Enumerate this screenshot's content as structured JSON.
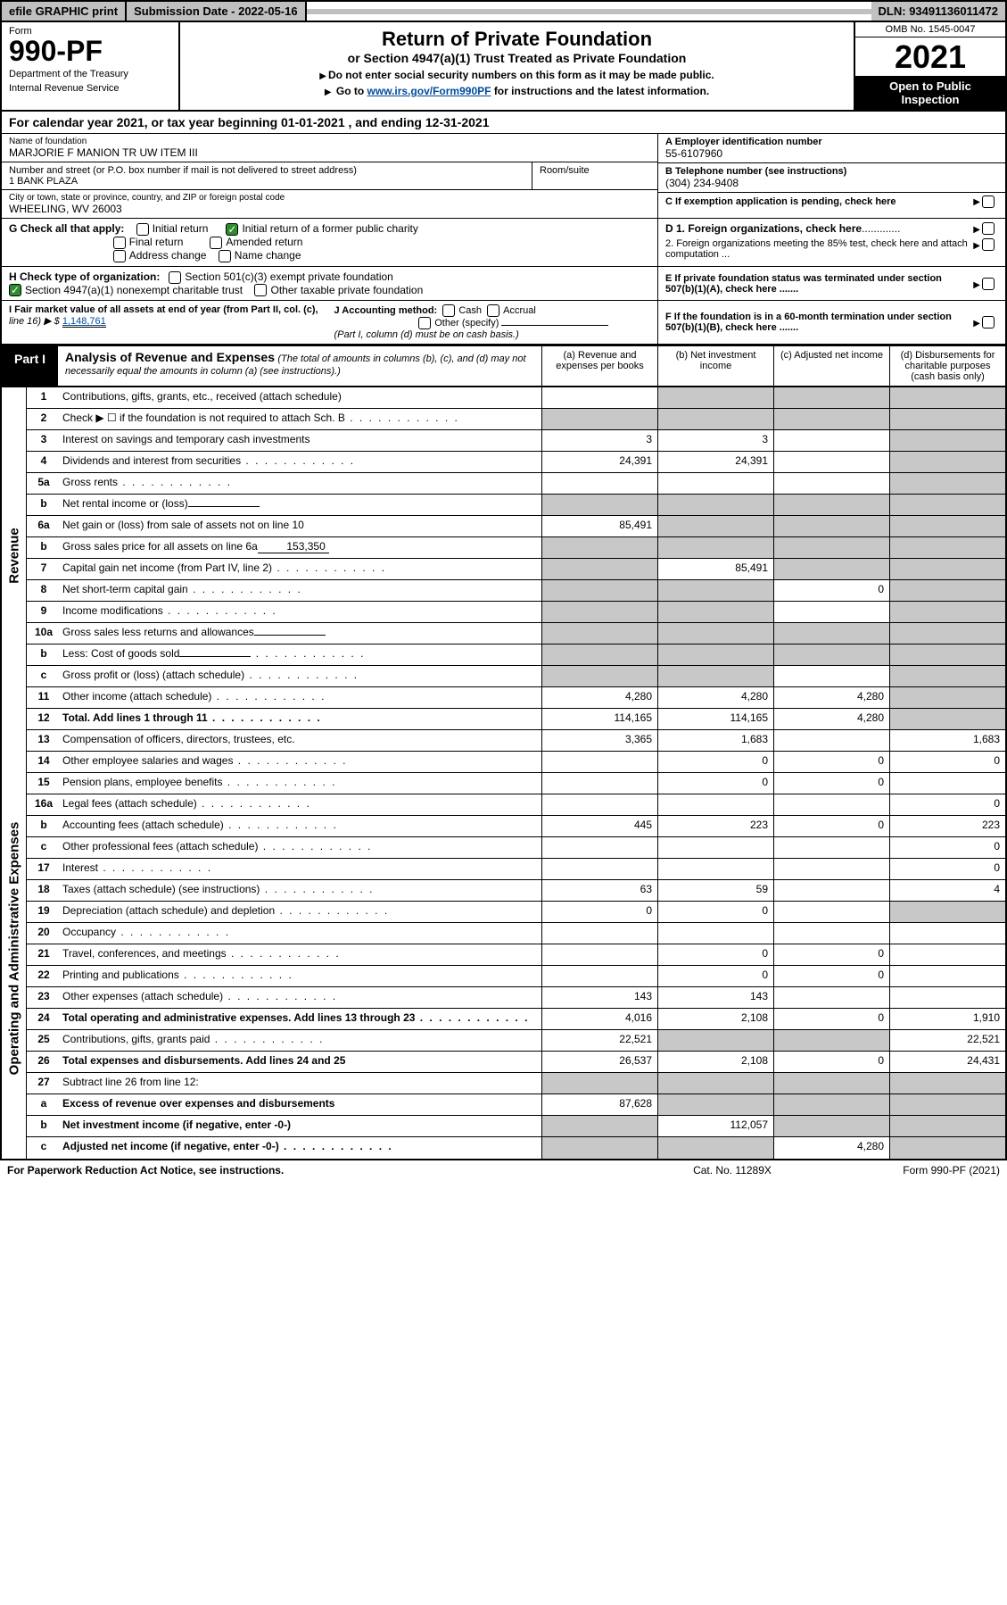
{
  "colors": {
    "black": "#000000",
    "gray_header": "#c0c0c0",
    "gray_cell": "#c8c8c8",
    "link": "#004b9b",
    "check_green": "#2e8b2e"
  },
  "topbar": {
    "efile": "efile GRAPHIC print",
    "subdate": "Submission Date - 2022-05-16",
    "dln": "DLN: 93491136011472"
  },
  "header": {
    "form": "Form",
    "formno": "990-PF",
    "dept": "Department of the Treasury",
    "irs": "Internal Revenue Service",
    "title": "Return of Private Foundation",
    "subtitle": "or Section 4947(a)(1) Trust Treated as Private Foundation",
    "instr1": "Do not enter social security numbers on this form as it may be made public.",
    "instr2_pre": "Go to ",
    "instr2_link": "www.irs.gov/Form990PF",
    "instr2_post": " for instructions and the latest information.",
    "omb": "OMB No. 1545-0047",
    "year": "2021",
    "open": "Open to Public Inspection"
  },
  "calyear": {
    "pre": "For calendar year 2021, or tax year beginning ",
    "begin": "01-01-2021",
    "mid": " , and ending ",
    "end": "12-31-2021"
  },
  "info": {
    "name_label": "Name of foundation",
    "name": "MARJORIE F MANION TR UW ITEM III",
    "addr_label": "Number and street (or P.O. box number if mail is not delivered to street address)",
    "addr": "1 BANK PLAZA",
    "room_label": "Room/suite",
    "room": "",
    "city_label": "City or town, state or province, country, and ZIP or foreign postal code",
    "city": "WHEELING, WV  26003",
    "a_label": "A Employer identification number",
    "a_val": "55-6107960",
    "b_label": "B Telephone number (see instructions)",
    "b_val": "(304) 234-9408",
    "c_label": "C If exemption application is pending, check here"
  },
  "g": {
    "label": "G Check all that apply:",
    "initial": "Initial return",
    "initial_former": "Initial return of a former public charity",
    "final": "Final return",
    "amended": "Amended return",
    "addr_change": "Address change",
    "name_change": "Name change"
  },
  "d": {
    "d1": "D 1. Foreign organizations, check here",
    "d2": "2. Foreign organizations meeting the 85% test, check here and attach computation ..."
  },
  "h": {
    "label": "H Check type of organization:",
    "s501": "Section 501(c)(3) exempt private foundation",
    "s4947": "Section 4947(a)(1) nonexempt charitable trust",
    "other_tax": "Other taxable private foundation"
  },
  "e": "E  If private foundation status was terminated under section 507(b)(1)(A), check here .......",
  "i": {
    "label": "I Fair market value of all assets at end of year (from Part II, col. (c),",
    "line16": "line 16) ▶ $",
    "val": "1,148,761"
  },
  "j": {
    "label": "J Accounting method:",
    "cash": "Cash",
    "accrual": "Accrual",
    "other": "Other (specify)",
    "note": "(Part I, column (d) must be on cash basis.)"
  },
  "f": "F  If the foundation is in a 60-month termination under section 507(b)(1)(B), check here .......",
  "part1": {
    "label": "Part I",
    "title": "Analysis of Revenue and Expenses",
    "note": "(The total of amounts in columns (b), (c), and (d) may not necessarily equal the amounts in column (a) (see instructions).)",
    "col_a": "(a)  Revenue and expenses per books",
    "col_b": "(b)  Net investment income",
    "col_c": "(c)  Adjusted net income",
    "col_d": "(d)  Disbursements for charitable purposes (cash basis only)"
  },
  "side": {
    "revenue": "Revenue",
    "expenses": "Operating and Administrative Expenses"
  },
  "rows": [
    {
      "n": "1",
      "d": "Contributions, gifts, grants, etc., received (attach schedule)",
      "a": "",
      "b": "gray",
      "c": "gray",
      "dd": "gray"
    },
    {
      "n": "2",
      "d": "Check ▶ ☐ if the foundation is not required to attach Sch. B",
      "a": "gray",
      "b": "gray",
      "c": "gray",
      "dd": "gray",
      "dots": true
    },
    {
      "n": "3",
      "d": "Interest on savings and temporary cash investments",
      "a": "3",
      "b": "3",
      "c": "",
      "dd": "gray"
    },
    {
      "n": "4",
      "d": "Dividends and interest from securities",
      "a": "24,391",
      "b": "24,391",
      "c": "",
      "dd": "gray",
      "dots": true
    },
    {
      "n": "5a",
      "d": "Gross rents",
      "a": "",
      "b": "",
      "c": "",
      "dd": "gray",
      "dots": true
    },
    {
      "n": "b",
      "d": "Net rental income or (loss)",
      "a": "gray",
      "b": "gray",
      "c": "gray",
      "dd": "gray",
      "inline": ""
    },
    {
      "n": "6a",
      "d": "Net gain or (loss) from sale of assets not on line 10",
      "a": "85,491",
      "b": "gray",
      "c": "gray",
      "dd": "gray"
    },
    {
      "n": "b",
      "d": "Gross sales price for all assets on line 6a",
      "a": "gray",
      "b": "gray",
      "c": "gray",
      "dd": "gray",
      "inline": "153,350"
    },
    {
      "n": "7",
      "d": "Capital gain net income (from Part IV, line 2)",
      "a": "gray",
      "b": "85,491",
      "c": "gray",
      "dd": "gray",
      "dots": true
    },
    {
      "n": "8",
      "d": "Net short-term capital gain",
      "a": "gray",
      "b": "gray",
      "c": "0",
      "dd": "gray",
      "dots": true
    },
    {
      "n": "9",
      "d": "Income modifications",
      "a": "gray",
      "b": "gray",
      "c": "",
      "dd": "gray",
      "dots": true
    },
    {
      "n": "10a",
      "d": "Gross sales less returns and allowances",
      "a": "gray",
      "b": "gray",
      "c": "gray",
      "dd": "gray",
      "inline": ""
    },
    {
      "n": "b",
      "d": "Less: Cost of goods sold",
      "a": "gray",
      "b": "gray",
      "c": "gray",
      "dd": "gray",
      "inline": "",
      "dots": true
    },
    {
      "n": "c",
      "d": "Gross profit or (loss) (attach schedule)",
      "a": "gray",
      "b": "gray",
      "c": "",
      "dd": "gray",
      "dots": true
    },
    {
      "n": "11",
      "d": "Other income (attach schedule)",
      "a": "4,280",
      "b": "4,280",
      "c": "4,280",
      "dd": "gray",
      "dots": true
    },
    {
      "n": "12",
      "d": "Total. Add lines 1 through 11",
      "a": "114,165",
      "b": "114,165",
      "c": "4,280",
      "dd": "gray",
      "bold": true,
      "dots": true
    }
  ],
  "exp_rows": [
    {
      "n": "13",
      "d": "Compensation of officers, directors, trustees, etc.",
      "a": "3,365",
      "b": "1,683",
      "c": "",
      "dd": "1,683"
    },
    {
      "n": "14",
      "d": "Other employee salaries and wages",
      "a": "",
      "b": "0",
      "c": "0",
      "dd": "0",
      "dots": true
    },
    {
      "n": "15",
      "d": "Pension plans, employee benefits",
      "a": "",
      "b": "0",
      "c": "0",
      "dd": "",
      "dots": true
    },
    {
      "n": "16a",
      "d": "Legal fees (attach schedule)",
      "a": "",
      "b": "",
      "c": "",
      "dd": "0",
      "dots": true
    },
    {
      "n": "b",
      "d": "Accounting fees (attach schedule)",
      "a": "445",
      "b": "223",
      "c": "0",
      "dd": "223",
      "dots": true
    },
    {
      "n": "c",
      "d": "Other professional fees (attach schedule)",
      "a": "",
      "b": "",
      "c": "",
      "dd": "0",
      "dots": true
    },
    {
      "n": "17",
      "d": "Interest",
      "a": "",
      "b": "",
      "c": "",
      "dd": "0",
      "dots": true
    },
    {
      "n": "18",
      "d": "Taxes (attach schedule) (see instructions)",
      "a": "63",
      "b": "59",
      "c": "",
      "dd": "4",
      "dots": true
    },
    {
      "n": "19",
      "d": "Depreciation (attach schedule) and depletion",
      "a": "0",
      "b": "0",
      "c": "",
      "dd": "gray",
      "dots": true
    },
    {
      "n": "20",
      "d": "Occupancy",
      "a": "",
      "b": "",
      "c": "",
      "dd": "",
      "dots": true
    },
    {
      "n": "21",
      "d": "Travel, conferences, and meetings",
      "a": "",
      "b": "0",
      "c": "0",
      "dd": "",
      "dots": true
    },
    {
      "n": "22",
      "d": "Printing and publications",
      "a": "",
      "b": "0",
      "c": "0",
      "dd": "",
      "dots": true
    },
    {
      "n": "23",
      "d": "Other expenses (attach schedule)",
      "a": "143",
      "b": "143",
      "c": "",
      "dd": "",
      "dots": true
    },
    {
      "n": "24",
      "d": "Total operating and administrative expenses. Add lines 13 through 23",
      "a": "4,016",
      "b": "2,108",
      "c": "0",
      "dd": "1,910",
      "bold": true,
      "dots": true
    },
    {
      "n": "25",
      "d": "Contributions, gifts, grants paid",
      "a": "22,521",
      "b": "gray",
      "c": "gray",
      "dd": "22,521",
      "dots": true
    },
    {
      "n": "26",
      "d": "Total expenses and disbursements. Add lines 24 and 25",
      "a": "26,537",
      "b": "2,108",
      "c": "0",
      "dd": "24,431",
      "bold": true
    },
    {
      "n": "27",
      "d": "Subtract line 26 from line 12:",
      "a": "gray",
      "b": "gray",
      "c": "gray",
      "dd": "gray"
    },
    {
      "n": "a",
      "d": "Excess of revenue over expenses and disbursements",
      "a": "87,628",
      "b": "gray",
      "c": "gray",
      "dd": "gray",
      "bold": true
    },
    {
      "n": "b",
      "d": "Net investment income (if negative, enter -0-)",
      "a": "gray",
      "b": "112,057",
      "c": "gray",
      "dd": "gray",
      "bold": true
    },
    {
      "n": "c",
      "d": "Adjusted net income (if negative, enter -0-)",
      "a": "gray",
      "b": "gray",
      "c": "4,280",
      "dd": "gray",
      "bold": true,
      "dots": true
    }
  ],
  "footer": {
    "left": "For Paperwork Reduction Act Notice, see instructions.",
    "center": "Cat. No. 11289X",
    "right": "Form 990-PF (2021)"
  }
}
